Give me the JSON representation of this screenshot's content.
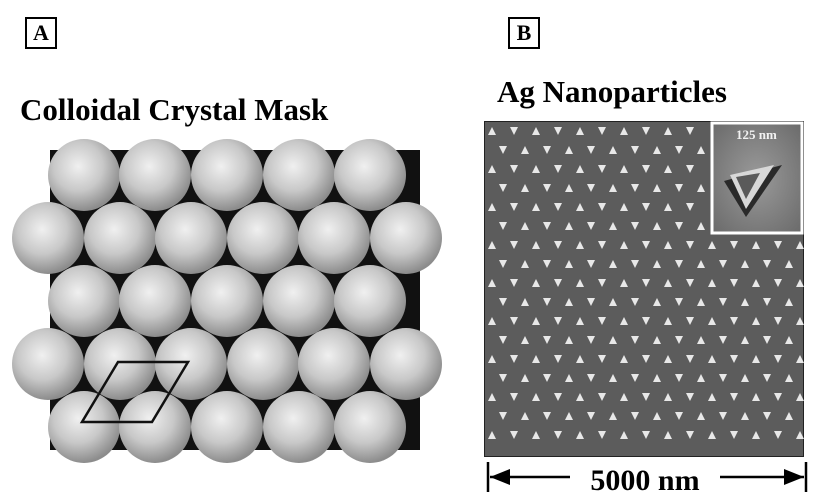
{
  "panel_a": {
    "label": "A",
    "title": "Colloidal Crystal Mask"
  },
  "panel_b": {
    "label": "B",
    "title": "Ag Nanoparticles",
    "inset_label": "125 nm",
    "scale_bar_label": "5000 nm"
  },
  "colors": {
    "sphere_light": "#f2f2f2",
    "sphere_dark": "#8a8a8a",
    "afm_background": "#5c5c5c",
    "particle_light": "#e8e8e8",
    "border": "#000000"
  }
}
